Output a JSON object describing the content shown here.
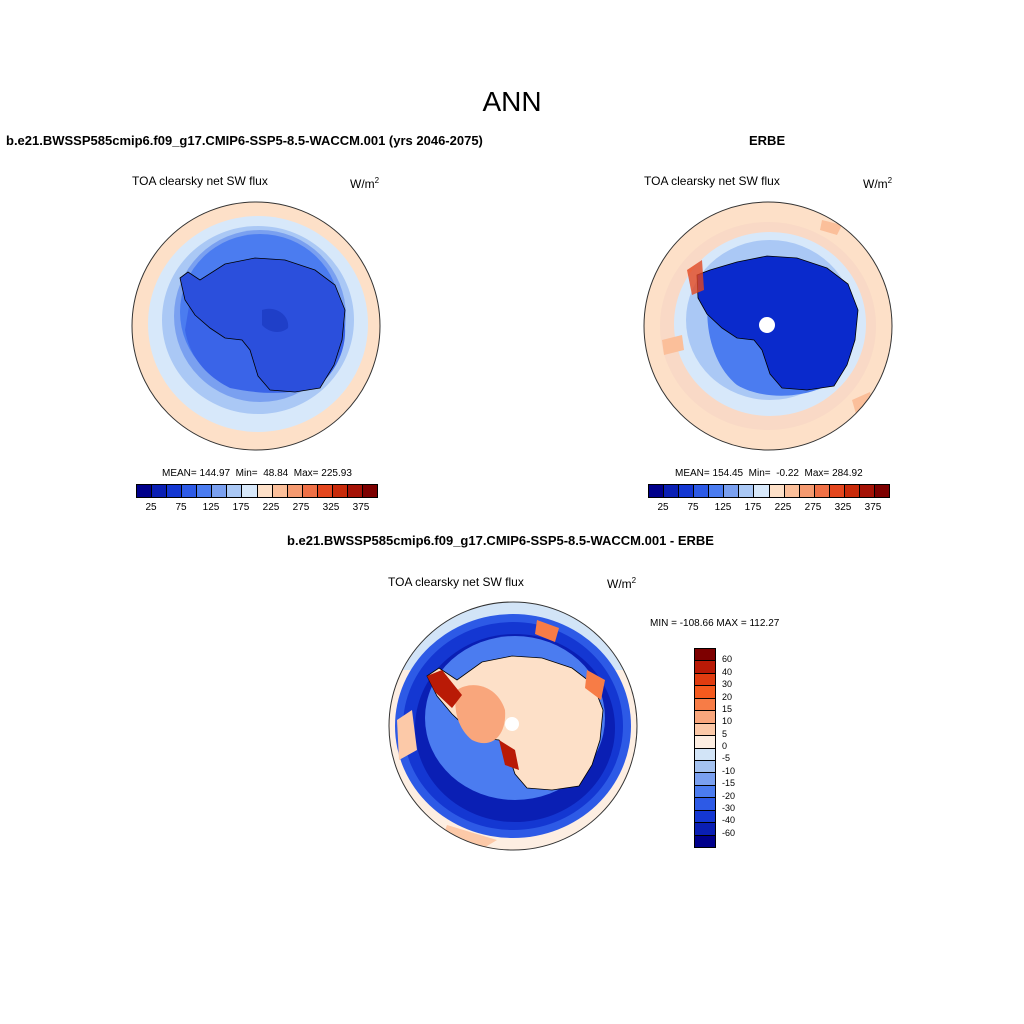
{
  "page": {
    "title": "ANN"
  },
  "panels": {
    "model": {
      "title": "b.e21.BWSSP585cmip6.f09_g17.CMIP6-SSP5-8.5-WACCM.001 (yrs 2046-2075)",
      "variable": "TOA clearsky net SW flux",
      "units_base": "W/m",
      "units_exp": "2",
      "stats": {
        "mean": "144.97",
        "min": "48.84",
        "max": "225.93"
      }
    },
    "obs": {
      "title": "ERBE",
      "variable": "TOA clearsky net SW flux",
      "units_base": "W/m",
      "units_exp": "2",
      "stats": {
        "mean": "154.45",
        "min": "-0.22",
        "max": "284.92"
      }
    },
    "diff": {
      "title": "b.e21.BWSSP585cmip6.f09_g17.CMIP6-SSP5-8.5-WACCM.001 - ERBE",
      "variable": "TOA clearsky net SW flux",
      "units_base": "W/m",
      "units_exp": "2",
      "minmax": "MIN = -108.66 MAX = 112.27"
    }
  },
  "colorbar_abs": {
    "ticks": [
      "25",
      "75",
      "125",
      "175",
      "225",
      "275",
      "325",
      "375"
    ],
    "colors": [
      "#00008b",
      "#0a1fb4",
      "#1437d2",
      "#2d5ae6",
      "#4b7cf0",
      "#7aa0f0",
      "#aac8f5",
      "#d7e8fa",
      "#fde0c8",
      "#fbbf9a",
      "#f59a70",
      "#ef7046",
      "#e4461e",
      "#c82a0a",
      "#a51206",
      "#7d0000"
    ]
  },
  "colorbar_diff": {
    "labels": [
      "60",
      "40",
      "30",
      "20",
      "15",
      "10",
      "5",
      "0",
      "-5",
      "-10",
      "-15",
      "-20",
      "-30",
      "-40",
      "-60"
    ],
    "colors": [
      "#7d0000",
      "#b91a06",
      "#e03c10",
      "#f55a1e",
      "#f77c46",
      "#f9a67c",
      "#fcc9a8",
      "#fdeee2",
      "#d2e4f7",
      "#a4c2f0",
      "#7aa0f0",
      "#4b7cf0",
      "#2d5ae6",
      "#1437d2",
      "#0a1fb4",
      "#00008b"
    ]
  }
}
